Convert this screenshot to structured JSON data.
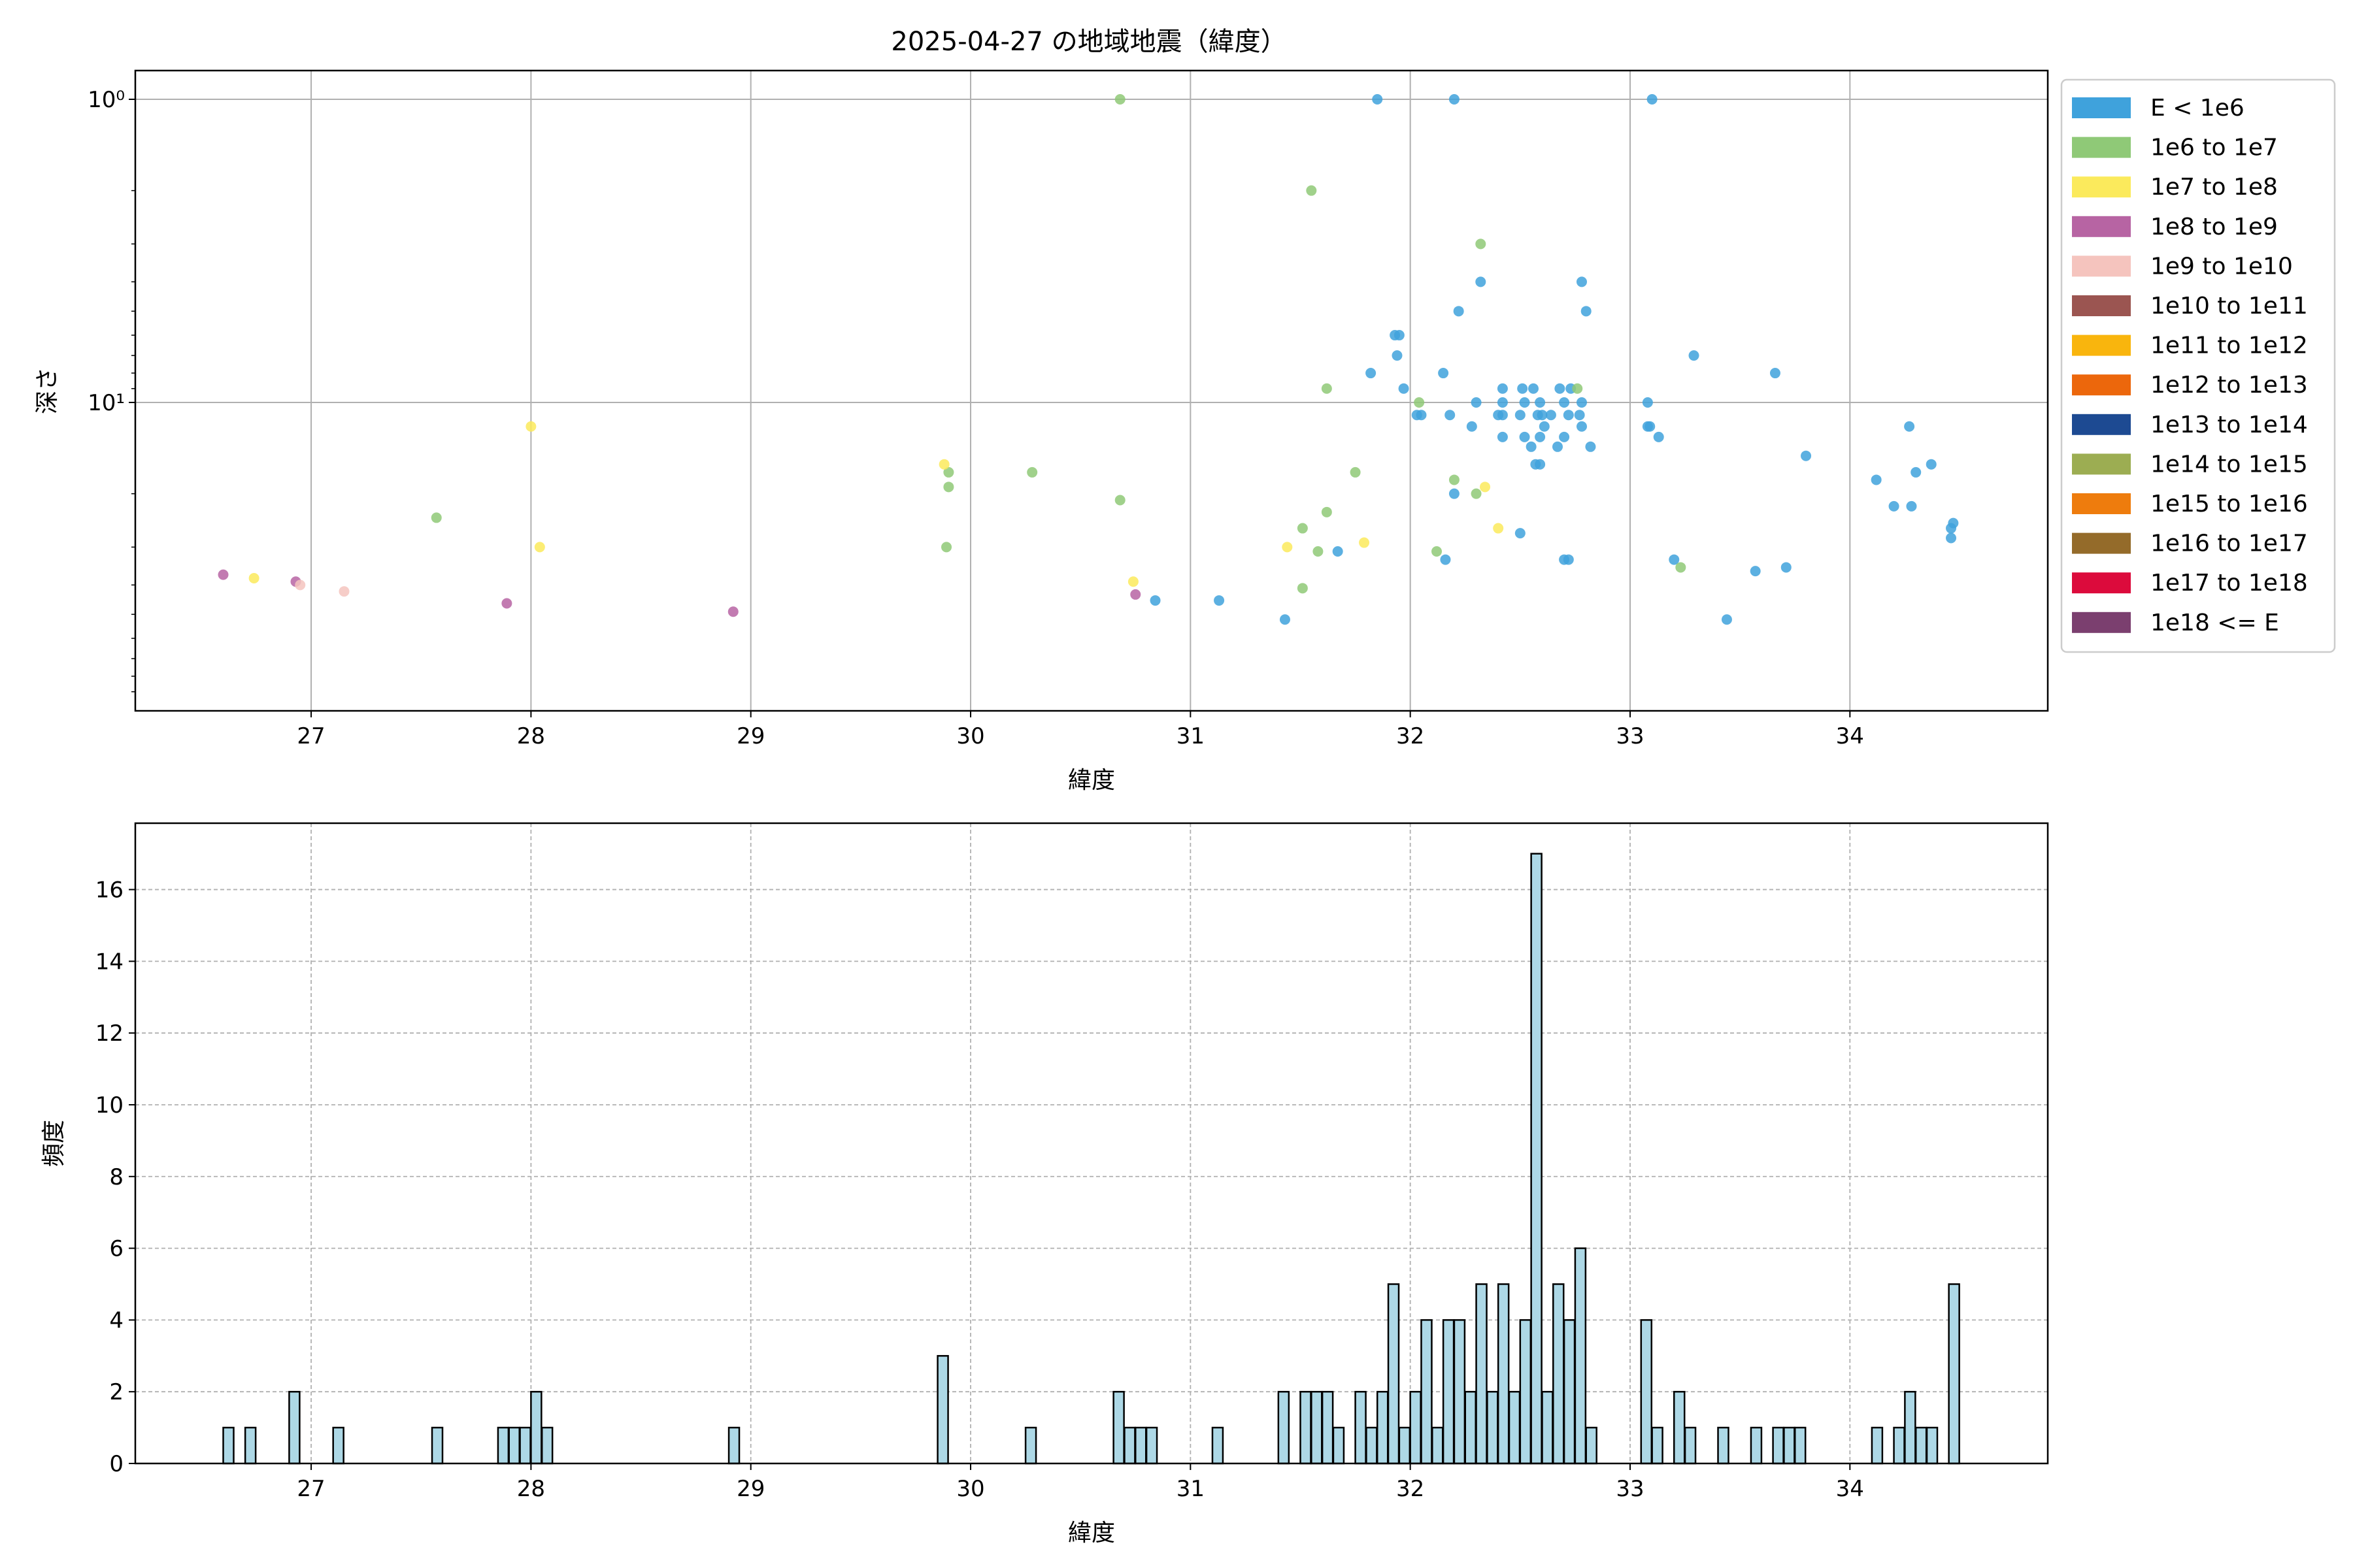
{
  "chart_data": [
    {
      "type": "scatter",
      "title": "2025-04-27 の地域地震（緯度）",
      "xlabel": "緯度",
      "ylabel": "深さ",
      "xlim": [
        26.2,
        34.9
      ],
      "ylim": [
        1.0,
        100.0
      ],
      "yscale": "log",
      "y_inverted": true,
      "grid": true,
      "xticks": [
        27,
        28,
        29,
        30,
        31,
        32,
        33,
        34
      ],
      "yticks": [
        {
          "value": 1,
          "label": "10⁰"
        },
        {
          "value": 10,
          "label": "10¹"
        }
      ],
      "legend_position": "outside-right",
      "legend": [
        {
          "label": "E < 1e6",
          "color": "#3fa2dc"
        },
        {
          "label": "1e6 to 1e7",
          "color": "#8fc977"
        },
        {
          "label": "1e7 to 1e8",
          "color": "#fbea5c"
        },
        {
          "label": "1e8 to 1e9",
          "color": "#b764a3"
        },
        {
          "label": "1e9 to 1e10",
          "color": "#f5c4be"
        },
        {
          "label": "1e10 to 1e11",
          "color": "#9b5551"
        },
        {
          "label": "1e11 to 1e12",
          "color": "#f9b50d"
        },
        {
          "label": "1e12 to 1e13",
          "color": "#ec670c"
        },
        {
          "label": "1e13 to 1e14",
          "color": "#1d4a92"
        },
        {
          "label": "1e14 to 1e15",
          "color": "#9cad52"
        },
        {
          "label": "1e15 to 1e16",
          "color": "#ee7c0d"
        },
        {
          "label": "1e16 to 1e17",
          "color": "#946b2a"
        },
        {
          "label": "1e17 to 1e18",
          "color": "#dc0b3c"
        },
        {
          "label": "1e18 <= E",
          "color": "#7b3f6f"
        }
      ],
      "series": [
        {
          "name": "E < 1e6",
          "color": "#3fa2dc",
          "points": [
            [
              31.85,
              1
            ],
            [
              32.2,
              1
            ],
            [
              33.1,
              1
            ],
            [
              32.32,
              4
            ],
            [
              32.78,
              4
            ],
            [
              32.22,
              5
            ],
            [
              32.8,
              5
            ],
            [
              31.93,
              6
            ],
            [
              31.95,
              6
            ],
            [
              31.94,
              7
            ],
            [
              33.29,
              7
            ],
            [
              31.82,
              8
            ],
            [
              32.15,
              8
            ],
            [
              33.66,
              8
            ],
            [
              31.97,
              9
            ],
            [
              32.42,
              9
            ],
            [
              32.51,
              9
            ],
            [
              32.56,
              9
            ],
            [
              32.68,
              9
            ],
            [
              32.73,
              9
            ],
            [
              32.3,
              10
            ],
            [
              32.42,
              10
            ],
            [
              32.52,
              10
            ],
            [
              32.59,
              10
            ],
            [
              32.7,
              10
            ],
            [
              32.78,
              10
            ],
            [
              33.08,
              10
            ],
            [
              32.05,
              11
            ],
            [
              32.03,
              11
            ],
            [
              32.18,
              11
            ],
            [
              32.4,
              11
            ],
            [
              32.42,
              11
            ],
            [
              32.5,
              11
            ],
            [
              32.58,
              11
            ],
            [
              32.6,
              11
            ],
            [
              32.64,
              11
            ],
            [
              32.72,
              11
            ],
            [
              32.77,
              11
            ],
            [
              32.28,
              12
            ],
            [
              32.61,
              12
            ],
            [
              32.78,
              12
            ],
            [
              33.08,
              12
            ],
            [
              33.09,
              12
            ],
            [
              34.27,
              12
            ],
            [
              32.42,
              13
            ],
            [
              32.52,
              13
            ],
            [
              32.59,
              13
            ],
            [
              32.7,
              13
            ],
            [
              33.13,
              13
            ],
            [
              32.55,
              14
            ],
            [
              32.67,
              14
            ],
            [
              32.82,
              14
            ],
            [
              33.8,
              15
            ],
            [
              32.57,
              16
            ],
            [
              32.59,
              16
            ],
            [
              34.37,
              16
            ],
            [
              34.3,
              17
            ],
            [
              34.12,
              18
            ],
            [
              32.2,
              20
            ],
            [
              34.2,
              22
            ],
            [
              34.28,
              22
            ],
            [
              34.47,
              25
            ],
            [
              34.46,
              26
            ],
            [
              32.5,
              27
            ],
            [
              34.46,
              28
            ],
            [
              31.67,
              31
            ],
            [
              32.16,
              33
            ],
            [
              32.7,
              33
            ],
            [
              32.72,
              33
            ],
            [
              33.2,
              33
            ],
            [
              33.71,
              35
            ],
            [
              33.57,
              36
            ],
            [
              30.84,
              45
            ],
            [
              31.13,
              45
            ],
            [
              33.44,
              52
            ],
            [
              31.43,
              52
            ]
          ]
        },
        {
          "name": "1e6 to 1e7",
          "color": "#8fc977",
          "points": [
            [
              30.68,
              1
            ],
            [
              31.55,
              2
            ],
            [
              32.32,
              3
            ],
            [
              31.62,
              9
            ],
            [
              32.76,
              9
            ],
            [
              32.04,
              10
            ],
            [
              29.9,
              17
            ],
            [
              30.28,
              17
            ],
            [
              31.75,
              17
            ],
            [
              32.2,
              18
            ],
            [
              29.9,
              19
            ],
            [
              32.3,
              20
            ],
            [
              30.68,
              21
            ],
            [
              31.62,
              23
            ],
            [
              27.57,
              24
            ],
            [
              31.51,
              26
            ],
            [
              29.89,
              30
            ],
            [
              31.58,
              31
            ],
            [
              32.12,
              31
            ],
            [
              33.23,
              35
            ],
            [
              31.51,
              41
            ]
          ]
        },
        {
          "name": "1e7 to 1e8",
          "color": "#fbea5c",
          "points": [
            [
              28.0,
              12
            ],
            [
              29.88,
              16
            ],
            [
              32.34,
              19
            ],
            [
              32.4,
              26
            ],
            [
              31.79,
              29
            ],
            [
              28.04,
              30
            ],
            [
              31.44,
              30
            ],
            [
              26.74,
              38
            ],
            [
              30.74,
              39
            ]
          ]
        },
        {
          "name": "1e8 to 1e9",
          "color": "#b764a3",
          "points": [
            [
              26.6,
              37
            ],
            [
              26.93,
              39
            ],
            [
              30.75,
              43
            ],
            [
              27.89,
              46
            ],
            [
              28.92,
              49
            ]
          ]
        },
        {
          "name": "1e9 to 1e10",
          "color": "#f5c4be",
          "points": [
            [
              26.95,
              40
            ],
            [
              27.15,
              42
            ]
          ]
        }
      ]
    },
    {
      "type": "bar",
      "title": "",
      "xlabel": "緯度",
      "ylabel": "頻度",
      "xlim": [
        26.2,
        34.9
      ],
      "ylim": [
        0,
        17.85
      ],
      "grid": true,
      "xticks": [
        27,
        28,
        29,
        30,
        31,
        32,
        33,
        34
      ],
      "yticks": [
        0,
        2,
        4,
        6,
        8,
        10,
        12,
        14,
        16
      ],
      "bar_color": "#add8e6",
      "bin_width": 0.05,
      "bins": [
        [
          26.6,
          1
        ],
        [
          26.7,
          1
        ],
        [
          26.9,
          2
        ],
        [
          27.1,
          1
        ],
        [
          27.55,
          1
        ],
        [
          27.85,
          1
        ],
        [
          27.9,
          1
        ],
        [
          27.95,
          1
        ],
        [
          28.0,
          2
        ],
        [
          28.05,
          1
        ],
        [
          28.9,
          1
        ],
        [
          29.85,
          3
        ],
        [
          30.25,
          1
        ],
        [
          30.65,
          2
        ],
        [
          30.7,
          1
        ],
        [
          30.75,
          1
        ],
        [
          30.8,
          1
        ],
        [
          31.1,
          1
        ],
        [
          31.4,
          2
        ],
        [
          31.5,
          2
        ],
        [
          31.55,
          2
        ],
        [
          31.6,
          2
        ],
        [
          31.65,
          1
        ],
        [
          31.75,
          2
        ],
        [
          31.8,
          1
        ],
        [
          31.85,
          2
        ],
        [
          31.9,
          5
        ],
        [
          31.95,
          1
        ],
        [
          32.0,
          2
        ],
        [
          32.05,
          4
        ],
        [
          32.1,
          1
        ],
        [
          32.15,
          4
        ],
        [
          32.2,
          4
        ],
        [
          32.25,
          2
        ],
        [
          32.3,
          5
        ],
        [
          32.35,
          2
        ],
        [
          32.4,
          5
        ],
        [
          32.45,
          2
        ],
        [
          32.5,
          4
        ],
        [
          32.55,
          17
        ],
        [
          32.6,
          2
        ],
        [
          32.65,
          5
        ],
        [
          32.7,
          4
        ],
        [
          32.75,
          6
        ],
        [
          32.8,
          1
        ],
        [
          33.05,
          4
        ],
        [
          33.1,
          1
        ],
        [
          33.2,
          2
        ],
        [
          33.25,
          1
        ],
        [
          33.4,
          1
        ],
        [
          33.55,
          1
        ],
        [
          33.65,
          1
        ],
        [
          33.7,
          1
        ],
        [
          33.75,
          1
        ],
        [
          34.1,
          1
        ],
        [
          34.2,
          1
        ],
        [
          34.25,
          2
        ],
        [
          34.3,
          1
        ],
        [
          34.35,
          1
        ],
        [
          34.45,
          5
        ]
      ]
    }
  ]
}
